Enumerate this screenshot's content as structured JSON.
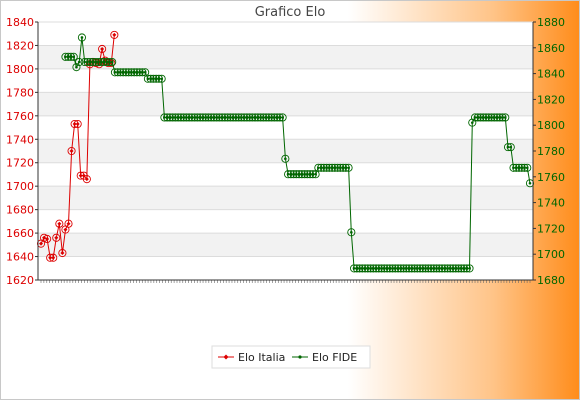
{
  "chart_data": {
    "type": "line",
    "title": "Grafico Elo",
    "left_axis": {
      "ylim": [
        1620,
        1840
      ],
      "ticks": [
        1620,
        1640,
        1660,
        1680,
        1700,
        1720,
        1740,
        1760,
        1780,
        1800,
        1820,
        1840
      ],
      "color": "#dd0000"
    },
    "right_axis": {
      "ylim": [
        1680,
        1880
      ],
      "ticks": [
        1680,
        1700,
        1720,
        1740,
        1760,
        1780,
        1800,
        1820,
        1840,
        1860,
        1880
      ],
      "color": "#006600"
    },
    "grid": true,
    "legend_position": "bottom",
    "series": [
      {
        "name": "Elo Italia",
        "axis": "left",
        "color": "#dd0000",
        "marker": "diamond",
        "values": [
          1651,
          1656,
          1655,
          1639,
          1639,
          1656,
          1668,
          1643,
          1663,
          1668,
          1730,
          1753,
          1753,
          1709,
          1709,
          1706,
          1804,
          1806,
          1805,
          1804,
          1817,
          1807,
          1805,
          1805,
          1829
        ]
      },
      {
        "name": "Elo FIDE",
        "axis": "right",
        "color": "#006600",
        "marker": "circle",
        "values": [
          1853,
          1853,
          1853,
          1853,
          1845,
          1849,
          1868,
          1849,
          1849,
          1849,
          1849,
          1849,
          1849,
          1849,
          1849,
          1849,
          1849,
          1849,
          1841,
          1841,
          1841,
          1841,
          1841,
          1841,
          1841,
          1841,
          1841,
          1841,
          1841,
          1841,
          1836,
          1836,
          1836,
          1836,
          1836,
          1836,
          1806,
          1806,
          1806,
          1806,
          1806,
          1806,
          1806,
          1806,
          1806,
          1806,
          1806,
          1806,
          1806,
          1806,
          1806,
          1806,
          1806,
          1806,
          1806,
          1806,
          1806,
          1806,
          1806,
          1806,
          1806,
          1806,
          1806,
          1806,
          1806,
          1806,
          1806,
          1806,
          1806,
          1806,
          1806,
          1806,
          1806,
          1806,
          1806,
          1806,
          1806,
          1806,
          1806,
          1806,
          1774,
          1762,
          1762,
          1762,
          1762,
          1762,
          1762,
          1762,
          1762,
          1762,
          1762,
          1762,
          1767,
          1767,
          1767,
          1767,
          1767,
          1767,
          1767,
          1767,
          1767,
          1767,
          1767,
          1767,
          1717,
          1689,
          1689,
          1689,
          1689,
          1689,
          1689,
          1689,
          1689,
          1689,
          1689,
          1689,
          1689,
          1689,
          1689,
          1689,
          1689,
          1689,
          1689,
          1689,
          1689,
          1689,
          1689,
          1689,
          1689,
          1689,
          1689,
          1689,
          1689,
          1689,
          1689,
          1689,
          1689,
          1689,
          1689,
          1689,
          1689,
          1689,
          1689,
          1689,
          1689,
          1689,
          1689,
          1689,
          1802,
          1806,
          1806,
          1806,
          1806,
          1806,
          1806,
          1806,
          1806,
          1806,
          1806,
          1806,
          1806,
          1783,
          1783,
          1767,
          1767,
          1767,
          1767,
          1767,
          1767,
          1755
        ]
      }
    ]
  }
}
